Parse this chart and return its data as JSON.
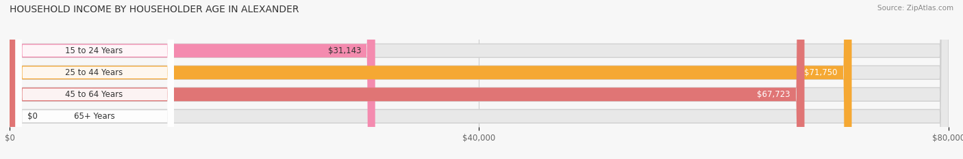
{
  "title": "HOUSEHOLD INCOME BY HOUSEHOLDER AGE IN ALEXANDER",
  "source": "Source: ZipAtlas.com",
  "categories": [
    "15 to 24 Years",
    "25 to 44 Years",
    "45 to 64 Years",
    "65+ Years"
  ],
  "values": [
    31143,
    71750,
    67723,
    0
  ],
  "bar_colors": [
    "#f48baf",
    "#f5a833",
    "#e07575",
    "#a8c4e0"
  ],
  "label_colors": [
    "#333333",
    "#ffffff",
    "#ffffff",
    "#333333"
  ],
  "bg_color": "#e8e8e8",
  "labels": [
    "$31,143",
    "$71,750",
    "$67,723",
    "$0"
  ],
  "xlim_max": 80000,
  "xticks": [
    0,
    40000,
    80000
  ],
  "xticklabels": [
    "$0",
    "$40,000",
    "$80,000"
  ],
  "figure_bg": "#f7f7f7"
}
